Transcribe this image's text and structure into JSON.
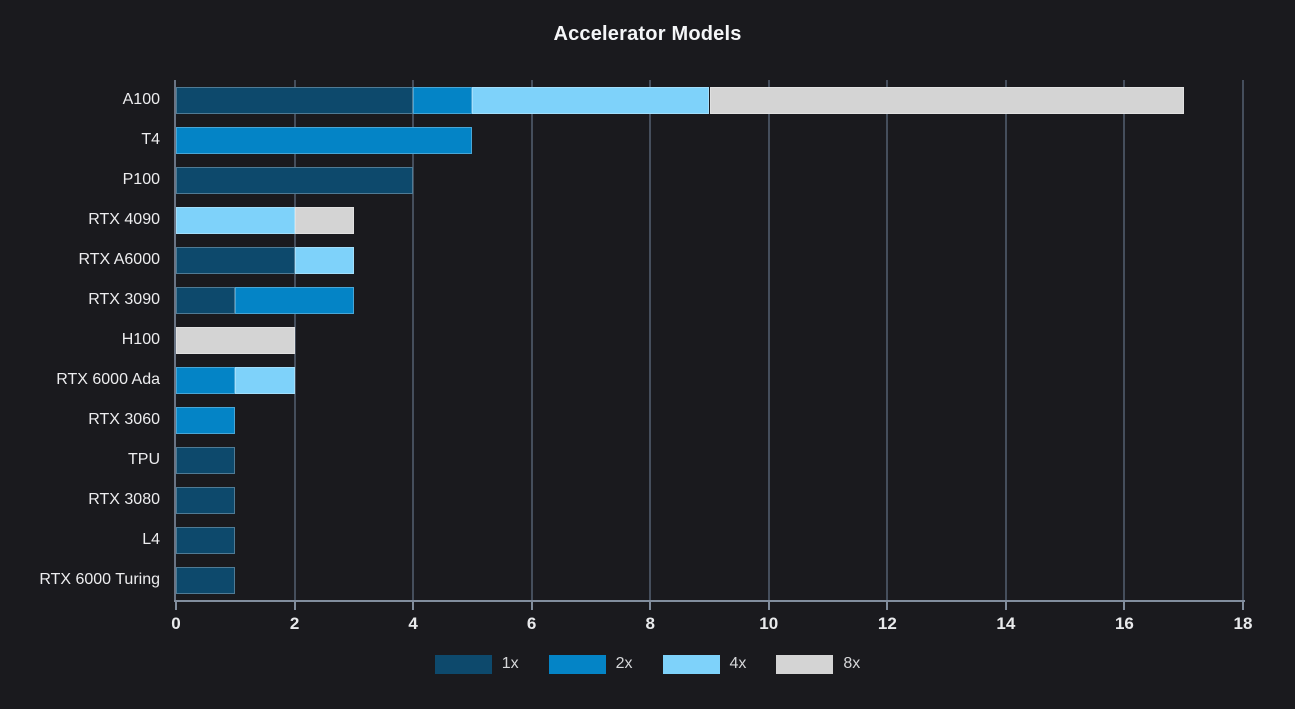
{
  "title": "Accelerator Models",
  "colors": {
    "background": "#1a1a1e",
    "title_text": "#f5f6f8",
    "tick_text": "#e9eaec",
    "category_text": "#ededef",
    "legend_text": "#d6d7d9",
    "gridline": "#454e5c",
    "axis_line": "#828e9e",
    "series_1x": "#0d496c",
    "series_2x": "#0484c6",
    "series_4x": "#7ed2fa",
    "series_8x": "#d4d4d4"
  },
  "chart_data": {
    "type": "bar",
    "orientation": "horizontal",
    "stacked": true,
    "title": "Accelerator Models",
    "xlabel": "",
    "ylabel": "",
    "grid": true,
    "legend_position": "bottom",
    "xlim": [
      0,
      18
    ],
    "x_ticks": [
      0,
      2,
      4,
      6,
      8,
      10,
      12,
      14,
      16,
      18
    ],
    "categories": [
      "A100",
      "T4",
      "P100",
      "RTX 4090",
      "RTX A6000",
      "RTX 3090",
      "H100",
      "RTX 6000 Ada",
      "RTX 3060",
      "TPU",
      "RTX 3080",
      "L4",
      "RTX 6000 Turing"
    ],
    "series": [
      {
        "name": "1x",
        "color": "#0d496c",
        "values": [
          4,
          0,
          4,
          0,
          2,
          1,
          0,
          0,
          0,
          1,
          1,
          1,
          1
        ]
      },
      {
        "name": "2x",
        "color": "#0484c6",
        "values": [
          1,
          5,
          0,
          0,
          0,
          2,
          0,
          1,
          1,
          0,
          0,
          0,
          0
        ]
      },
      {
        "name": "4x",
        "color": "#7ed2fa",
        "values": [
          4,
          0,
          0,
          2,
          1,
          0,
          0,
          1,
          0,
          0,
          0,
          0,
          0
        ]
      },
      {
        "name": "8x",
        "color": "#d4d4d4",
        "values": [
          8,
          0,
          0,
          1,
          0,
          0,
          2,
          0,
          0,
          0,
          0,
          0,
          0
        ]
      }
    ],
    "totals": {
      "A100": 17,
      "T4": 5,
      "P100": 4,
      "RTX 4090": 3,
      "RTX A6000": 3,
      "RTX 3090": 3,
      "H100": 2,
      "RTX 6000 Ada": 2,
      "RTX 3060": 1,
      "TPU": 1,
      "RTX 3080": 1,
      "L4": 1,
      "RTX 6000 Turing": 1
    }
  }
}
